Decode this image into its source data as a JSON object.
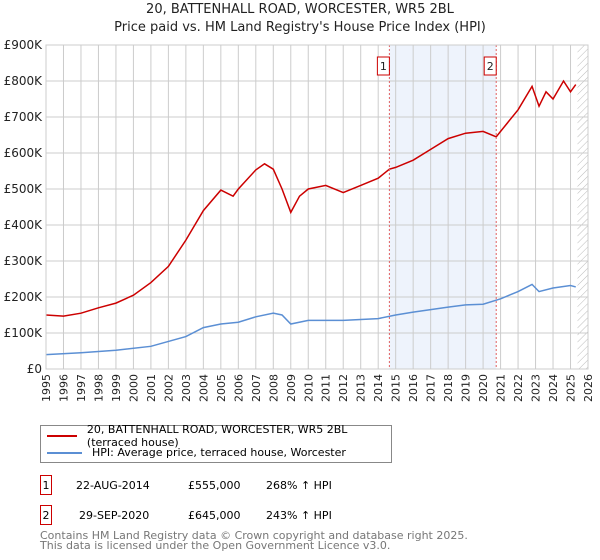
{
  "chart_data": {
    "type": "line",
    "title": "20, BATTENHALL ROAD, WORCESTER, WR5 2BL",
    "subtitle": "Price paid vs. HM Land Registry's House Price Index (HPI)",
    "ylim": [
      0,
      900000
    ],
    "xlim": [
      1995,
      2026
    ],
    "yticks": [
      {
        "v": 0,
        "label": "£0"
      },
      {
        "v": 100000,
        "label": "£100K"
      },
      {
        "v": 200000,
        "label": "£200K"
      },
      {
        "v": 300000,
        "label": "£300K"
      },
      {
        "v": 400000,
        "label": "£400K"
      },
      {
        "v": 500000,
        "label": "£500K"
      },
      {
        "v": 600000,
        "label": "£600K"
      },
      {
        "v": 700000,
        "label": "£700K"
      },
      {
        "v": 800000,
        "label": "£800K"
      },
      {
        "v": 900000,
        "label": "£900K"
      }
    ],
    "xticks": [
      "1995",
      "1996",
      "1997",
      "1998",
      "1999",
      "2000",
      "2001",
      "2002",
      "2003",
      "2004",
      "2005",
      "2006",
      "2007",
      "2008",
      "2009",
      "2010",
      "2011",
      "2012",
      "2013",
      "2014",
      "2015",
      "2016",
      "2017",
      "2018",
      "2019",
      "2020",
      "2021",
      "2022",
      "2023",
      "2024",
      "2025",
      "2026"
    ],
    "series": [
      {
        "name": "20, BATTENHALL ROAD, WORCESTER, WR5 2BL (terraced house)",
        "color": "#cc0000",
        "x": [
          1995,
          1996,
          1997,
          1998,
          1999,
          2000,
          2001,
          2002,
          2003,
          2004,
          2005,
          2005.7,
          2006,
          2007,
          2007.5,
          2008,
          2008.5,
          2009,
          2009.5,
          2010,
          2011,
          2012,
          2013,
          2014,
          2014.64,
          2015,
          2016,
          2017,
          2018,
          2019,
          2020,
          2020.75,
          2021,
          2022,
          2022.8,
          2023.2,
          2023.6,
          2024,
          2024.6,
          2025,
          2025.3
        ],
        "y": [
          150000,
          147000,
          155000,
          170000,
          183000,
          205000,
          240000,
          285000,
          358000,
          440000,
          497000,
          480000,
          500000,
          553000,
          570000,
          555000,
          500000,
          435000,
          480000,
          500000,
          510000,
          490000,
          510000,
          530000,
          555000,
          560000,
          580000,
          610000,
          640000,
          655000,
          660000,
          645000,
          660000,
          720000,
          785000,
          730000,
          770000,
          750000,
          800000,
          770000,
          790000
        ]
      },
      {
        "name": "HPI: Average price, terraced house, Worcester",
        "color": "#5b8fd4",
        "x": [
          1995,
          1997,
          1999,
          2001,
          2003,
          2004,
          2005,
          2006,
          2007,
          2008,
          2008.5,
          2009,
          2010,
          2012,
          2014,
          2015,
          2016,
          2017,
          2018,
          2019,
          2020,
          2021,
          2022,
          2022.8,
          2023.2,
          2024,
          2025,
          2025.3
        ],
        "y": [
          40000,
          45000,
          52000,
          63000,
          90000,
          115000,
          125000,
          130000,
          145000,
          155000,
          150000,
          125000,
          135000,
          135000,
          140000,
          150000,
          158000,
          165000,
          172000,
          178000,
          180000,
          195000,
          215000,
          235000,
          215000,
          225000,
          232000,
          228000
        ]
      }
    ],
    "annotations": [
      {
        "label": "1",
        "x": 2014.64
      },
      {
        "label": "2",
        "x": 2020.75
      }
    ],
    "shaded_range": [
      2014.64,
      2020.75
    ],
    "forecast_start": 2025.4
  },
  "transactions": [
    {
      "num": "1",
      "date": "22-AUG-2014",
      "price": "£555,000",
      "hpi": "268% ↑ HPI"
    },
    {
      "num": "2",
      "date": "29-SEP-2020",
      "price": "£645,000",
      "hpi": "243% ↑ HPI"
    }
  ],
  "footer": [
    "Contains HM Land Registry data © Crown copyright and database right 2025.",
    "This data is licensed under the Open Government Licence v3.0."
  ]
}
